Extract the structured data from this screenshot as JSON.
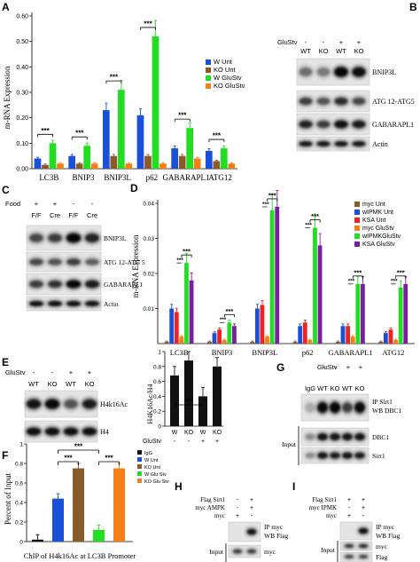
{
  "panels": {
    "A": {
      "letter": "A"
    },
    "B": {
      "letter": "B"
    },
    "C": {
      "letter": "C"
    },
    "D": {
      "letter": "D"
    },
    "E": {
      "letter": "E"
    },
    "F": {
      "letter": "F"
    },
    "G": {
      "letter": "G"
    },
    "H": {
      "letter": "H"
    },
    "I": {
      "letter": "I"
    }
  },
  "colors": {
    "A": [
      "#1a4fd8",
      "#8b5a2b",
      "#22dd22",
      "#f57f17"
    ],
    "D": [
      "#8b5a2b",
      "#1a4fd8",
      "#ee2222",
      "#f57f17",
      "#22dd22",
      "#7b1fa2"
    ],
    "F": [
      "#111111",
      "#1a4fd8",
      "#8b5a2b",
      "#22dd22",
      "#f57f17"
    ],
    "E": [
      "#111111"
    ]
  },
  "sig": "***",
  "chart_data": [
    {
      "panel": "A",
      "type": "bar",
      "ylabel": "m-RNA Expression",
      "ylim": [
        0,
        0.6
      ],
      "yticks": [
        "0.00",
        "0.10",
        "0.20",
        "0.30",
        "0.40",
        "0.50",
        "0.60"
      ],
      "categories": [
        "LC3B",
        "BNIP3",
        "BNIP3L",
        "p62",
        "GABARAPL1",
        "ATG12"
      ],
      "series": [
        {
          "name": "W Unt",
          "values": [
            0.04,
            0.05,
            0.23,
            0.21,
            0.08,
            0.07
          ]
        },
        {
          "name": "KO Unt",
          "values": [
            0.015,
            0.02,
            0.05,
            0.05,
            0.05,
            0.03
          ]
        },
        {
          "name": "W GluStv",
          "values": [
            0.1,
            0.09,
            0.31,
            0.52,
            0.16,
            0.08
          ]
        },
        {
          "name": "KO GluStv",
          "values": [
            0.02,
            0.02,
            0.02,
            0.02,
            0.04,
            0.02
          ]
        }
      ],
      "legend": [
        "W Unt",
        "KO Unt",
        "W GluStv",
        "KO GluStv"
      ]
    },
    {
      "panel": "D",
      "type": "bar",
      "ylabel": "m-RNA Expression",
      "ylim": [
        0,
        0.04
      ],
      "yticks": [
        "0.01",
        "0.02",
        "0.03",
        "0.04"
      ],
      "categories": [
        "LC3B",
        "BNIP3",
        "BNIP3L",
        "p62",
        "GABARAPL1",
        "ATG12"
      ],
      "series": [
        {
          "name": "myc Unt",
          "values": [
            0.0005,
            0.0005,
            0.0005,
            0.0005,
            0.0005,
            0.0005
          ]
        },
        {
          "name": "wIPMK Unt",
          "values": [
            0.01,
            0.003,
            0.01,
            0.005,
            0.005,
            0.003
          ]
        },
        {
          "name": "KSA Unt",
          "values": [
            0.009,
            0.004,
            0.011,
            0.006,
            0.005,
            0.004
          ]
        },
        {
          "name": "myc GluStv",
          "values": [
            0.002,
            0.001,
            0.002,
            0.001,
            0.002,
            0.001
          ]
        },
        {
          "name": "wIPMKGluStv",
          "values": [
            0.023,
            0.006,
            0.038,
            0.033,
            0.017,
            0.016
          ]
        },
        {
          "name": "KSA GluStv",
          "values": [
            0.018,
            0.005,
            0.039,
            0.028,
            0.017,
            0.017
          ]
        }
      ],
      "legend": [
        "myc Unt",
        "wIPMK Unt",
        "KSA Unt",
        "myc GluStv",
        "wIPMKGluStv",
        "KSA GluStv"
      ]
    },
    {
      "panel": "E",
      "type": "bar",
      "ylabel": "H4K16Ac/H4",
      "ylim": [
        0,
        1.0
      ],
      "yticks": [
        "0",
        "0.2",
        "0.4",
        "0.6",
        "0.8",
        "1"
      ],
      "categories": [
        "W",
        "KO",
        "W",
        "KO"
      ],
      "values": [
        0.68,
        0.88,
        0.4,
        0.8
      ],
      "glustv_label": "GluStv",
      "glustv_marks": [
        "-",
        "-",
        "+",
        "+"
      ]
    },
    {
      "panel": "F",
      "type": "bar",
      "ylabel": "Percent of Input",
      "xlabel": "ChIP of H4k16Ac  at LC3B Promoter",
      "ylim": [
        0,
        1.0
      ],
      "yticks": [
        "0",
        "0.2",
        "0.4",
        "0.6",
        "0.8",
        "1"
      ],
      "categories": [
        "IgG",
        "W Unt",
        "KO Unt",
        "W Glu Stv",
        "KO Glu Stv"
      ],
      "values": [
        0.02,
        0.44,
        0.75,
        0.12,
        0.75
      ],
      "legend": [
        "IgG",
        "W Unt",
        "KO Unt",
        "W Glu Stv",
        "KO Glu Stv"
      ]
    }
  ],
  "blots": {
    "B": {
      "treatment": "GluStv",
      "marks": [
        "-",
        "-",
        "+",
        "+"
      ],
      "lanes": [
        "WT",
        "KO",
        "WT",
        "KO"
      ],
      "labels": [
        "BNIP3L",
        "ATG 12-ATG5",
        "GABARAPL1",
        "Actin"
      ]
    },
    "C": {
      "treatment": "Food",
      "marks": [
        "+",
        "+",
        "-",
        "-"
      ],
      "lanes": [
        "F/F",
        "Cre",
        "F/F",
        "Cre"
      ],
      "labels": [
        "BNIP3L",
        "ATG 12-ATG 5",
        "GABARAPL1",
        "Actin"
      ]
    },
    "E": {
      "treatment": "GluStv",
      "marks": [
        "-",
        "-",
        "+",
        "+"
      ],
      "lanes": [
        "WT",
        "KO",
        "WT",
        "KO"
      ],
      "labels": [
        "H4k16Ac",
        "H4"
      ]
    },
    "G": {
      "treatment": "GluStv",
      "marks": [
        "-",
        "-",
        "+",
        "+"
      ],
      "lanes": [
        "IgG",
        "WT",
        "KO",
        "WT",
        "KO"
      ],
      "labels": [
        "IP Sirt1",
        "WB DBC1",
        "DBC1",
        "Sirt1"
      ],
      "input": "Input"
    },
    "H": {
      "rows": [
        "Flag Sirt1",
        "myc AMPK",
        "myc"
      ],
      "marks": [
        [
          "-",
          "+"
        ],
        [
          "-",
          "+"
        ],
        [
          "+",
          "-"
        ]
      ],
      "labels": [
        "IP myc",
        "WB Flag",
        "myc",
        "Flag"
      ],
      "input": "Input"
    },
    "I": {
      "rows": [
        "Flag Sirt1",
        "myc IPMK",
        "myc"
      ],
      "marks": [
        [
          "+",
          "+"
        ],
        [
          "-",
          "+"
        ],
        [
          "+",
          "-"
        ]
      ],
      "labels": [
        "IP myc",
        "WB Flag",
        "myc",
        "Flag"
      ],
      "input": "Input"
    }
  }
}
